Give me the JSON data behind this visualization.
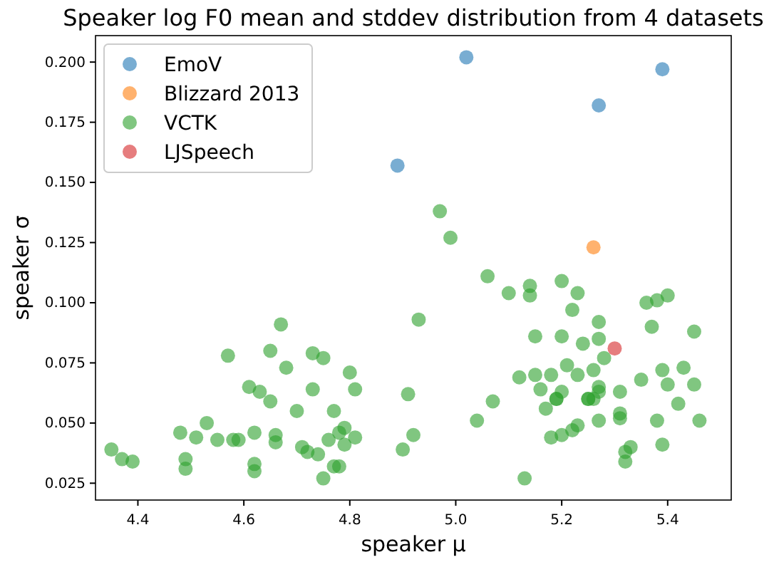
{
  "chart_data": {
    "type": "scatter",
    "title": "Speaker log F0 mean and stddev distribution from 4 datasets",
    "xlabel": "speaker μ",
    "ylabel": "speaker σ",
    "xlim": [
      4.32,
      5.52
    ],
    "ylim": [
      0.018,
      0.211
    ],
    "xticks": [
      4.4,
      4.6,
      4.8,
      {
        "value": 5.0,
        "label": "5.0"
      },
      5.2,
      5.4
    ],
    "yticks": [
      {
        "value": 0.025,
        "label": "0.025"
      },
      {
        "value": 0.05,
        "label": "0.050"
      },
      {
        "value": 0.075,
        "label": "0.075"
      },
      {
        "value": 0.1,
        "label": "0.100"
      },
      {
        "value": 0.125,
        "label": "0.125"
      },
      {
        "value": 0.15,
        "label": "0.150"
      },
      {
        "value": 0.175,
        "label": "0.175"
      },
      {
        "value": 0.2,
        "label": "0.200"
      }
    ],
    "legend": "top left",
    "marker": "circle",
    "grid": false,
    "series": [
      {
        "name": "EmoV",
        "color": "#1f77b4",
        "x": [
          4.89,
          5.02,
          5.27,
          5.39
        ],
        "values": [
          0.157,
          0.202,
          0.182,
          0.197
        ]
      },
      {
        "name": "Blizzard 2013",
        "color": "#ff7f0e",
        "x": [
          5.26
        ],
        "values": [
          0.123
        ]
      },
      {
        "name": "VCTK",
        "color": "#2ca02c",
        "x": [
          4.35,
          4.37,
          4.39,
          4.48,
          4.49,
          4.49,
          4.51,
          4.53,
          4.55,
          4.57,
          4.58,
          4.59,
          4.61,
          4.62,
          4.62,
          4.62,
          4.63,
          4.65,
          4.65,
          4.66,
          4.66,
          4.67,
          4.68,
          4.7,
          4.71,
          4.72,
          4.73,
          4.73,
          4.74,
          4.75,
          4.75,
          4.76,
          4.77,
          4.77,
          4.78,
          4.78,
          4.79,
          4.79,
          4.8,
          4.81,
          4.81,
          4.9,
          4.91,
          4.92,
          4.93,
          4.97,
          4.99,
          5.04,
          5.06,
          5.07,
          5.1,
          5.12,
          5.13,
          5.14,
          5.14,
          5.15,
          5.15,
          5.16,
          5.17,
          5.18,
          5.18,
          5.19,
          5.19,
          5.2,
          5.2,
          5.2,
          5.2,
          5.21,
          5.22,
          5.22,
          5.23,
          5.23,
          5.23,
          5.24,
          5.25,
          5.25,
          5.26,
          5.26,
          5.27,
          5.27,
          5.27,
          5.27,
          5.27,
          5.28,
          5.31,
          5.31,
          5.31,
          5.32,
          5.32,
          5.33,
          5.35,
          5.36,
          5.37,
          5.38,
          5.38,
          5.39,
          5.39,
          5.4,
          5.4,
          5.42,
          5.43,
          5.45,
          5.45,
          5.46
        ],
        "values": [
          0.039,
          0.035,
          0.034,
          0.046,
          0.031,
          0.035,
          0.044,
          0.05,
          0.043,
          0.078,
          0.043,
          0.043,
          0.065,
          0.046,
          0.03,
          0.033,
          0.063,
          0.08,
          0.059,
          0.045,
          0.042,
          0.091,
          0.073,
          0.055,
          0.04,
          0.038,
          0.079,
          0.064,
          0.037,
          0.077,
          0.027,
          0.043,
          0.032,
          0.055,
          0.046,
          0.032,
          0.048,
          0.041,
          0.071,
          0.064,
          0.044,
          0.039,
          0.062,
          0.045,
          0.093,
          0.138,
          0.127,
          0.051,
          0.111,
          0.059,
          0.104,
          0.069,
          0.027,
          0.103,
          0.107,
          0.07,
          0.086,
          0.064,
          0.056,
          0.044,
          0.07,
          0.06,
          0.06,
          0.045,
          0.086,
          0.063,
          0.109,
          0.074,
          0.047,
          0.097,
          0.049,
          0.07,
          0.104,
          0.083,
          0.06,
          0.06,
          0.06,
          0.072,
          0.051,
          0.085,
          0.092,
          0.065,
          0.063,
          0.077,
          0.052,
          0.054,
          0.063,
          0.038,
          0.034,
          0.04,
          0.068,
          0.1,
          0.09,
          0.101,
          0.051,
          0.072,
          0.041,
          0.103,
          0.066,
          0.058,
          0.073,
          0.088,
          0.066,
          0.051
        ]
      },
      {
        "name": "LJSpeech",
        "color": "#d62728",
        "x": [
          5.3
        ],
        "values": [
          0.081
        ]
      }
    ]
  }
}
